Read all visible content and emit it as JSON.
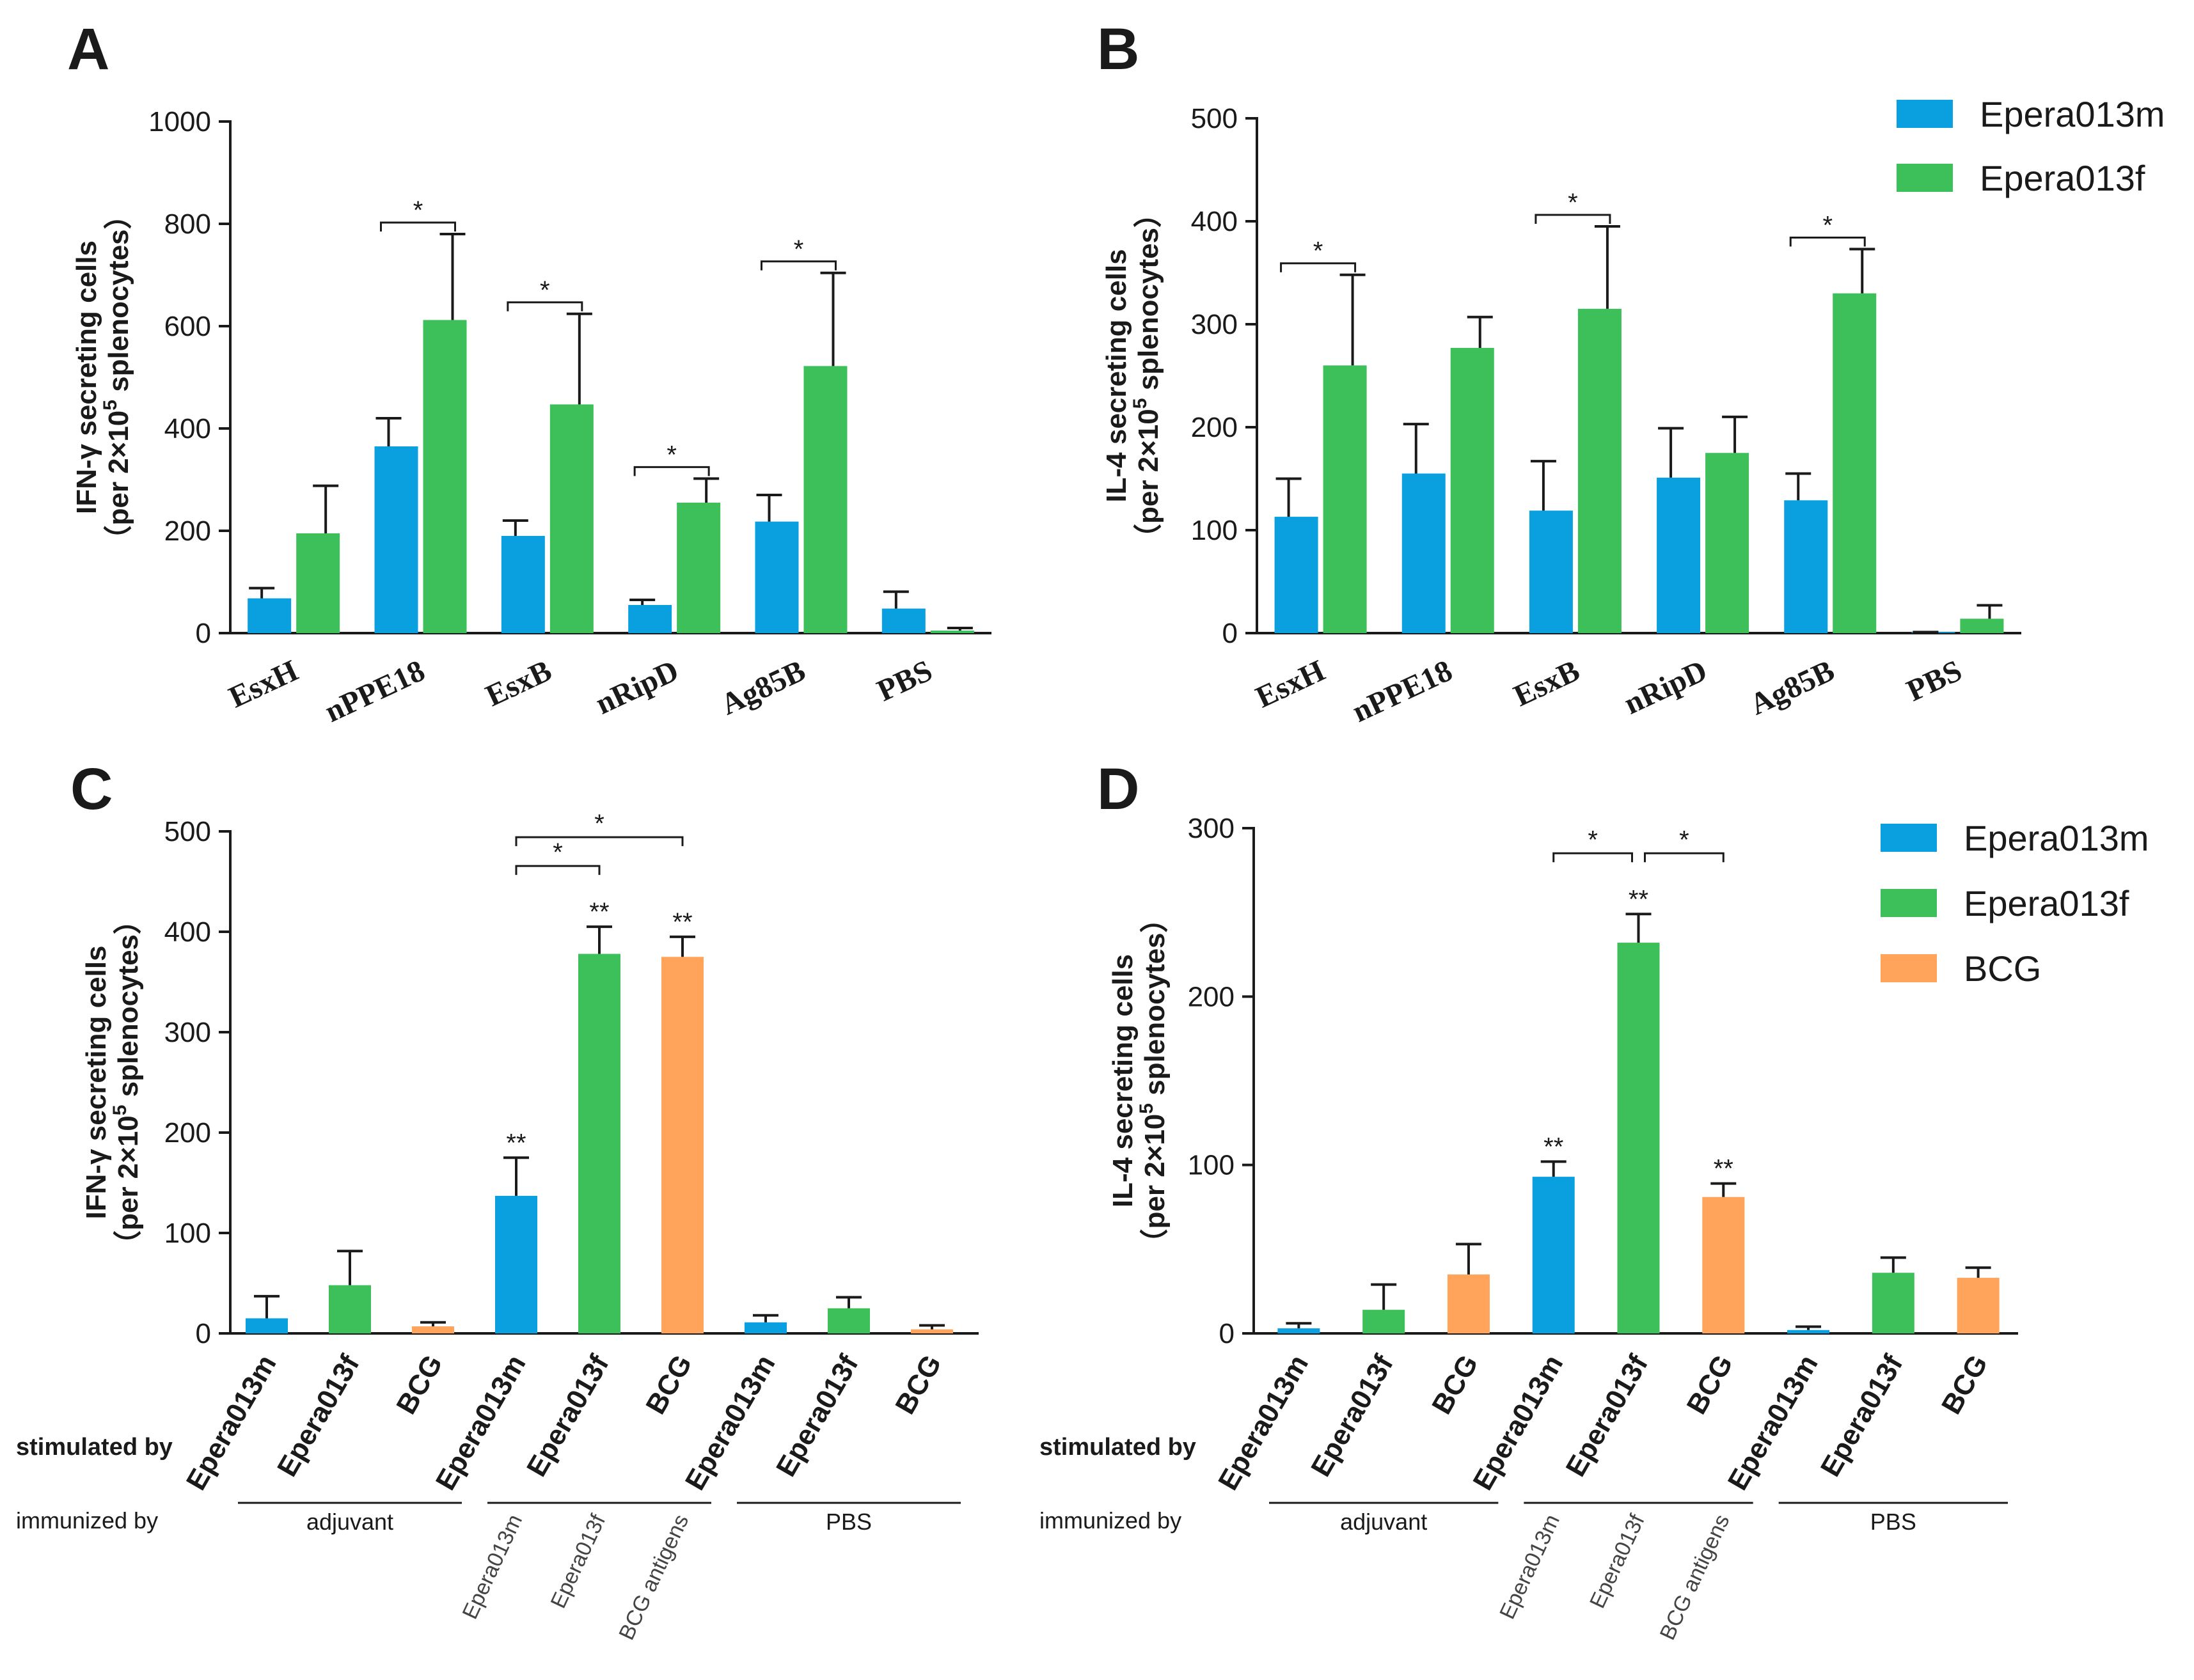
{
  "colors": {
    "epera013m": "#0aa0e0",
    "epera013f": "#3dbf5a",
    "bcg": "#ffa45a",
    "axis": "#1a1a1a"
  },
  "legend_AB": [
    {
      "label": "Epera013m",
      "color": "#0aa0e0"
    },
    {
      "label": "Epera013f",
      "color": "#3dbf5a"
    }
  ],
  "legend_CD": [
    {
      "label": "Epera013m",
      "color": "#0aa0e0"
    },
    {
      "label": "Epera013f",
      "color": "#3dbf5a"
    },
    {
      "label": "BCG",
      "color": "#ffa45a"
    }
  ],
  "ylabel_ifn": [
    "IFN-γ secreting cells",
    "（per 2×10",
    "5",
    " splenocytes）"
  ],
  "ylabel_il4": [
    "IL-4 secreting cells",
    "（per 2×10",
    "5",
    " splenocytes）"
  ],
  "row_labels": {
    "stimulated": "stimulated by",
    "immunized": "immunized by"
  },
  "chart_data": [
    {
      "panel": "A",
      "type": "bar",
      "categories": [
        "EsxH",
        "nPPE18",
        "EsxB",
        "nRipD",
        "Ag85B",
        "PBS"
      ],
      "ylim": [
        0,
        1000
      ],
      "yticks": [
        0,
        200,
        400,
        600,
        800,
        1000
      ],
      "ylabel": "IFN-γ secreting cells (per 2×10^5 splenocytes)",
      "series": [
        {
          "name": "Epera013m",
          "values": [
            68,
            365,
            190,
            55,
            218,
            48
          ],
          "errors": [
            20,
            55,
            30,
            10,
            52,
            33
          ]
        },
        {
          "name": "Epera013f",
          "values": [
            195,
            612,
            447,
            255,
            522,
            5
          ],
          "errors": [
            93,
            168,
            177,
            47,
            182,
            5
          ]
        }
      ],
      "significance": [
        {
          "category": 0,
          "label": "",
          "show": false
        },
        {
          "category": 1,
          "label": "*"
        },
        {
          "category": 2,
          "label": "*"
        },
        {
          "category": 3,
          "label": "*"
        },
        {
          "category": 4,
          "label": "*"
        }
      ]
    },
    {
      "panel": "B",
      "type": "bar",
      "categories": [
        "EsxH",
        "nPPE18",
        "EsxB",
        "nRipD",
        "Ag85B",
        "PBS"
      ],
      "ylim": [
        0,
        500
      ],
      "yticks": [
        0,
        100,
        200,
        300,
        400,
        500
      ],
      "ylabel": "IL-4 secreting cells (per 2×10^5 splenocytes)",
      "series": [
        {
          "name": "Epera013m",
          "values": [
            113,
            155,
            119,
            151,
            129,
            1
          ],
          "errors": [
            37,
            48,
            48,
            48,
            26,
            0
          ]
        },
        {
          "name": "Epera013f",
          "values": [
            260,
            277,
            315,
            175,
            330,
            14
          ],
          "errors": [
            88,
            30,
            80,
            35,
            43,
            13
          ]
        }
      ],
      "significance": [
        {
          "category": 0,
          "label": "*"
        },
        {
          "category": 2,
          "label": "*"
        },
        {
          "category": 4,
          "label": "*"
        }
      ]
    },
    {
      "panel": "C",
      "type": "bar",
      "categories": [
        "Epera013m",
        "Epera013f",
        "BCG",
        "Epera013m",
        "Epera013f",
        "BCG",
        "Epera013m",
        "Epera013f",
        "BCG"
      ],
      "series_by_bar": [
        "Epera013m",
        "Epera013f",
        "BCG",
        "Epera013m",
        "Epera013f",
        "BCG",
        "Epera013m",
        "Epera013f",
        "BCG"
      ],
      "values": [
        15,
        48,
        7,
        137,
        378,
        375,
        11,
        25,
        4
      ],
      "errors": [
        22,
        34,
        4,
        38,
        27,
        20,
        7,
        11,
        4
      ],
      "star_labels": [
        "",
        "",
        "",
        "**",
        "**",
        "**",
        "",
        "",
        ""
      ],
      "ylim": [
        0,
        500
      ],
      "yticks": [
        0,
        100,
        200,
        300,
        400,
        500
      ],
      "ylabel": "IFN-γ secreting cells (per 2×10^5 splenocytes)",
      "groups": [
        {
          "label": "adjuvant",
          "span": [
            0,
            2
          ]
        },
        {
          "label": "",
          "span": [
            3,
            5
          ]
        },
        {
          "label": "PBS",
          "span": [
            6,
            8
          ]
        }
      ],
      "immunized_rotated": [
        "Epera013m",
        "Epera013f",
        "BCG antigens"
      ],
      "brackets": [
        {
          "from": 3,
          "to": 4,
          "label": "*"
        },
        {
          "from": 3,
          "to": 5,
          "label": "*"
        }
      ]
    },
    {
      "panel": "D",
      "type": "bar",
      "categories": [
        "Epera013m",
        "Epera013f",
        "BCG",
        "Epera013m",
        "Epera013f",
        "BCG",
        "Epera013m",
        "Epera013f",
        "BCG"
      ],
      "series_by_bar": [
        "Epera013m",
        "Epera013f",
        "BCG",
        "Epera013m",
        "Epera013f",
        "BCG",
        "Epera013m",
        "Epera013f",
        "BCG"
      ],
      "values": [
        3,
        14,
        35,
        93,
        232,
        81,
        2,
        36,
        33
      ],
      "errors": [
        3,
        15,
        18,
        9,
        17,
        8,
        2,
        9,
        6
      ],
      "star_labels": [
        "",
        "",
        "",
        "**",
        "**",
        "**",
        "",
        "",
        ""
      ],
      "ylim": [
        0,
        300
      ],
      "yticks": [
        0,
        100,
        200,
        300
      ],
      "ylabel": "IL-4 secreting cells (per 2×10^5 splenocytes)",
      "groups": [
        {
          "label": "adjuvant",
          "span": [
            0,
            2
          ]
        },
        {
          "label": "",
          "span": [
            3,
            5
          ]
        },
        {
          "label": "PBS",
          "span": [
            6,
            8
          ]
        }
      ],
      "immunized_rotated": [
        "Epera013m",
        "Epera013f",
        "BCG antigens"
      ],
      "brackets": [
        {
          "from": 3,
          "to": 4,
          "label": "*"
        },
        {
          "from": 4,
          "to": 5,
          "label": "*"
        }
      ]
    }
  ]
}
